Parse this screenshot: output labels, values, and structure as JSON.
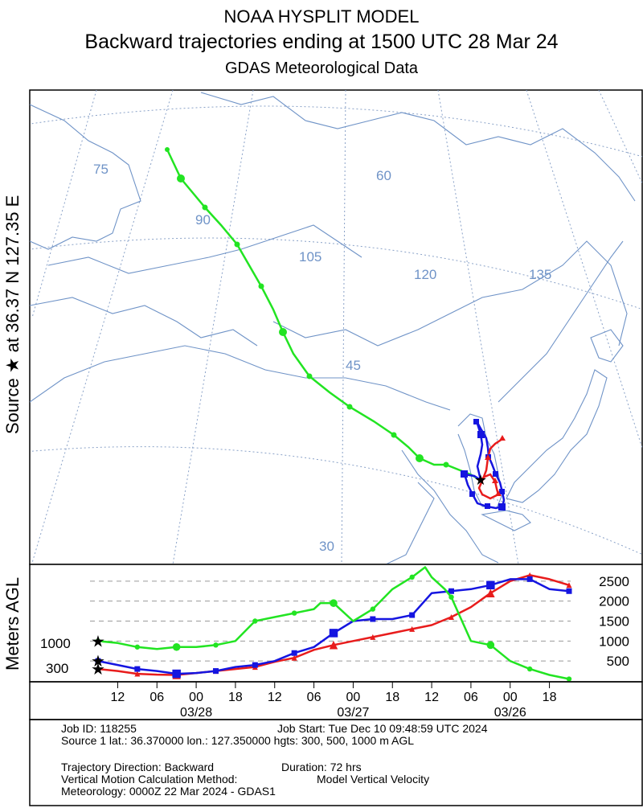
{
  "header": {
    "model": "NOAA HYSPLIT MODEL",
    "title": "Backward trajectories ending at 1500 UTC 28 Mar 24",
    "subtitle": "GDAS Meteorological Data"
  },
  "side_labels": {
    "source": "Source ★ at 36.37 N 127.35 E",
    "vertical_axis": "Meters AGL"
  },
  "map": {
    "longitude_labels": [
      "75",
      "90",
      "105",
      "120",
      "135"
    ],
    "latitude_labels": [
      "60",
      "45",
      "30"
    ]
  },
  "colors": {
    "grid": "#8aa2c8",
    "land": "#6f93c7",
    "height_300": "#e81c1c",
    "height_500": "#1515e0",
    "height_1000": "#22e422",
    "frame": "#000000",
    "reference_lines": "#9a9a9a"
  },
  "chart_data": {
    "type": "line",
    "title": "Backward trajectories ending at 1500 UTC 28 Mar 24",
    "xlabel": "",
    "ylabel": "Meters AGL",
    "x_unit": "hours before 1500 UTC 28 Mar 2024",
    "x_range": [
      0,
      72
    ],
    "ylim": [
      0,
      3000
    ],
    "y_ticks": [
      500,
      1000,
      1500,
      2000,
      2500
    ],
    "time_ticks": [
      {
        "hour": 3,
        "label": "12"
      },
      {
        "hour": 9,
        "label": "06"
      },
      {
        "hour": 15,
        "label": "00",
        "date": "03/28"
      },
      {
        "hour": 21,
        "label": "18"
      },
      {
        "hour": 27,
        "label": "12"
      },
      {
        "hour": 33,
        "label": "06"
      },
      {
        "hour": 39,
        "label": "00",
        "date": "03/27"
      },
      {
        "hour": 45,
        "label": "18"
      },
      {
        "hour": 51,
        "label": "12"
      },
      {
        "hour": 57,
        "label": "06"
      },
      {
        "hour": 63,
        "label": "00",
        "date": "03/26"
      },
      {
        "hour": 69,
        "label": "18"
      }
    ],
    "start_height_labels": [
      "1000",
      "300"
    ],
    "grid": "dashed horizontal lines",
    "series": [
      {
        "name": "300 m AGL",
        "color": "#e81c1c",
        "marker": "triangle",
        "x": [
          0,
          3,
          6,
          9,
          12,
          15,
          18,
          21,
          24,
          27,
          30,
          33,
          36,
          39,
          42,
          45,
          48,
          51,
          54,
          57,
          60,
          63,
          66,
          69,
          72
        ],
        "values": [
          300,
          250,
          180,
          160,
          150,
          200,
          250,
          300,
          350,
          480,
          580,
          780,
          900,
          1000,
          1100,
          1200,
          1300,
          1400,
          1600,
          1850,
          2200,
          2500,
          2650,
          2550,
          2400
        ]
      },
      {
        "name": "500 m AGL",
        "color": "#1515e0",
        "marker": "square",
        "x": [
          0,
          3,
          6,
          9,
          12,
          15,
          18,
          21,
          24,
          27,
          30,
          33,
          36,
          39,
          42,
          45,
          48,
          51,
          54,
          57,
          60,
          63,
          66,
          69,
          72
        ],
        "values": [
          500,
          400,
          300,
          250,
          180,
          200,
          250,
          350,
          400,
          500,
          700,
          850,
          1200,
          1500,
          1550,
          1550,
          1650,
          2200,
          2250,
          2300,
          2400,
          2550,
          2550,
          2300,
          2250
        ]
      },
      {
        "name": "1000 m AGL",
        "color": "#22e422",
        "marker": "circle",
        "x": [
          0,
          3,
          6,
          9,
          12,
          15,
          18,
          21,
          24,
          27,
          30,
          33,
          34,
          36,
          39,
          42,
          45,
          47,
          48,
          50,
          51,
          53,
          54,
          57,
          60,
          63,
          66,
          69,
          72
        ],
        "values": [
          1000,
          950,
          850,
          800,
          850,
          850,
          900,
          1000,
          1500,
          1600,
          1700,
          1800,
          1950,
          1950,
          1500,
          1800,
          2300,
          2500,
          2600,
          2850,
          2600,
          2300,
          2100,
          1000,
          900,
          500,
          300,
          150,
          50
        ]
      }
    ]
  },
  "info": {
    "job_id": "Job ID: 118255",
    "job_start": "Job Start: Tue Dec 10 09:48:59 UTC 2024",
    "source_line": "Source 1 lat.: 36.370000  lon.: 127.350000  hgts: 300, 500, 1000 m AGL",
    "direction": "Trajectory Direction: Backward",
    "duration": "Duration: 72 hrs",
    "vertical_method_label": "Vertical Motion Calculation Method:",
    "vertical_method_value": "Model Vertical Velocity",
    "meteorology": "Meteorology: 0000Z 22 Mar 2024 - GDAS1"
  }
}
